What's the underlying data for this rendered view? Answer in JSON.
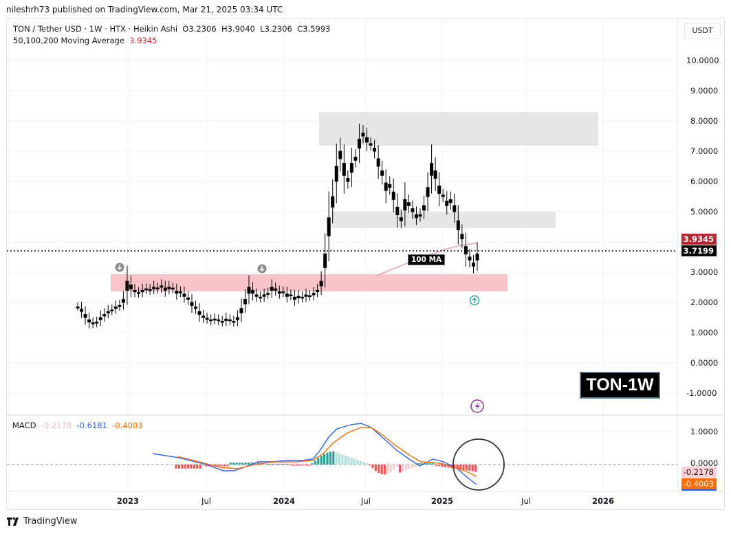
{
  "publisher": "nileshrh73 published on TradingView.com, Mar 21, 2025 03:34 UTC",
  "header": {
    "symbol_line": "TON / Tether USD · 1W · HTX · Heikin Ashi",
    "ohlc": {
      "open": "O3.2306",
      "high": "H3.9040",
      "low": "L3.2306",
      "close": "C3.5993"
    },
    "ma_label": "50,100,200 Moving Average",
    "ma_value": "3.9345"
  },
  "price_scale": {
    "unit_button": "USDT",
    "ticks": [
      "10.0000",
      "9.0000",
      "8.0000",
      "7.0000",
      "6.0000",
      "5.0000",
      "3.0000",
      "2.0000",
      "1.0000",
      "0.0000",
      "-1.0000"
    ],
    "ma_tag": "3.9345",
    "price_tag": "3.7199"
  },
  "macd": {
    "label": "MACD",
    "histogram": "-0.2178",
    "macd_line": "-0.6181",
    "signal_line": "-0.4003",
    "ticks": [
      "1.0000",
      "0.0000"
    ],
    "hist_tag": "-0.2178",
    "signal_tag": "-0.4003"
  },
  "time_axis": [
    "2023",
    "Jul",
    "2024",
    "Jul",
    "2025",
    "Jul",
    "2026"
  ],
  "annotations": {
    "ma_label": "100 MA",
    "badge": "TON-1W"
  },
  "footer": {
    "brand": "TradingView"
  },
  "colors": {
    "ma_red": "#c2262e",
    "macd_blue": "#2962ff",
    "signal_orange": "#ff6d00",
    "hist_pink": "#ffcdd2",
    "hist_red": "#ff5252",
    "hist_teal": "#26a69a",
    "hist_light_teal": "#b2dfdb",
    "zone_red": "#f8c3c9",
    "zone_gray": "#e6e6e6"
  },
  "chart_data": [
    {
      "type": "candlestick",
      "title": "TON / Tether USD · 1W · HTX · Heikin Ashi",
      "ylabel": "USDT",
      "ylim": [
        -1.3,
        10.5
      ],
      "x_ticks": [
        "2023",
        "Jul",
        "2024",
        "Jul",
        "2025",
        "Jul",
        "2026"
      ],
      "y_ticks": [
        -1,
        0,
        1,
        2,
        3,
        4,
        5,
        6,
        7,
        8,
        9,
        10
      ],
      "last": {
        "open": 3.2306,
        "high": 3.904,
        "low": 3.2306,
        "close": 3.5993
      },
      "current_price": 3.7199,
      "moving_average_100": 3.9345,
      "approx_weekly_closes": [
        1.85,
        1.7,
        1.5,
        1.35,
        1.3,
        1.35,
        1.5,
        1.6,
        1.7,
        1.75,
        1.85,
        1.9,
        2.1,
        2.7,
        2.45,
        2.35,
        2.3,
        2.4,
        2.45,
        2.4,
        2.5,
        2.45,
        2.55,
        2.4,
        2.5,
        2.45,
        2.3,
        2.35,
        2.2,
        2.1,
        1.9,
        1.8,
        1.6,
        1.5,
        1.45,
        1.4,
        1.45,
        1.4,
        1.35,
        1.45,
        1.4,
        1.35,
        1.5,
        1.8,
        2.1,
        2.5,
        2.3,
        2.2,
        2.15,
        2.25,
        2.3,
        2.5,
        2.4,
        2.3,
        2.35,
        2.2,
        2.25,
        2.1,
        2.2,
        2.15,
        2.25,
        2.2,
        2.3,
        2.4,
        2.7,
        3.6,
        4.8,
        5.5,
        6.5,
        7.0,
        6.2,
        6.0,
        6.6,
        6.8,
        7.4,
        7.6,
        7.3,
        7.2,
        7.0,
        6.5,
        6.2,
        5.7,
        5.9,
        5.4,
        4.9,
        4.7,
        5.4,
        5.2,
        5.0,
        4.8,
        4.9,
        5.2,
        5.8,
        6.6,
        6.1,
        5.6,
        5.5,
        5.2,
        5.4,
        5.0,
        4.4,
        4.1,
        3.6,
        3.4,
        3.2,
        3.6
      ],
      "zones": [
        {
          "type": "resistance",
          "color": "gray",
          "range": [
            7.2,
            8.3
          ],
          "from": "2024-03",
          "to": "2025-09"
        },
        {
          "type": "support",
          "color": "gray",
          "range": [
            4.5,
            5.0
          ],
          "from": "2024-04",
          "to": "2025-09"
        },
        {
          "type": "demand",
          "color": "red",
          "range": [
            2.4,
            2.95
          ],
          "from": "2022-11",
          "to": "2025-05"
        }
      ],
      "markers": [
        {
          "type": "down-arrow",
          "date": "2022-12",
          "price": 3.2
        },
        {
          "type": "down-arrow",
          "date": "2023-09",
          "price": 3.2
        },
        {
          "type": "up-arrow",
          "date": "2025-03",
          "price": 2.1
        },
        {
          "type": "lightning",
          "date": "2025-03",
          "price": -1.4
        }
      ]
    },
    {
      "type": "line",
      "title": "MACD",
      "series": [
        {
          "name": "MACD",
          "color": "#2962ff",
          "last": -0.6181
        },
        {
          "name": "Signal",
          "color": "#ff6d00",
          "last": -0.4003
        },
        {
          "name": "Histogram",
          "color": "#ffcdd2",
          "last": -0.2178
        }
      ],
      "y_ticks": [
        1.0,
        0.0
      ],
      "approx_macd_path": [
        [
          2022.7,
          0.3
        ],
        [
          2023.0,
          0.15
        ],
        [
          2023.5,
          -0.2
        ],
        [
          2023.8,
          0.0
        ],
        [
          2024.0,
          0.05
        ],
        [
          2024.3,
          0.25
        ],
        [
          2024.5,
          1.2
        ],
        [
          2024.7,
          1.1
        ],
        [
          2024.9,
          0.0
        ],
        [
          2025.0,
          0.1
        ],
        [
          2025.2,
          -0.6
        ]
      ],
      "approx_signal_path": [
        [
          2022.8,
          0.2
        ],
        [
          2023.5,
          -0.1
        ],
        [
          2024.0,
          0.05
        ],
        [
          2024.4,
          0.2
        ],
        [
          2024.7,
          1.2
        ],
        [
          2024.95,
          0.25
        ],
        [
          2025.05,
          0.1
        ],
        [
          2025.2,
          -0.4
        ]
      ]
    }
  ]
}
